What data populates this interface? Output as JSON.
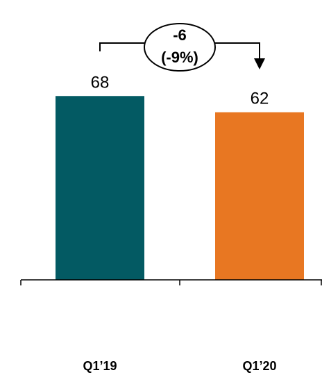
{
  "chart_data": {
    "type": "bar",
    "categories": [
      "Q1’19",
      "Q1’20"
    ],
    "values": [
      68,
      62
    ],
    "value_labels": [
      "68",
      "62"
    ],
    "colors": [
      "#035a63",
      "#e87722"
    ],
    "ylim": [
      0,
      75
    ],
    "grid": false,
    "title": "",
    "xlabel": "",
    "ylabel": "",
    "annotation": {
      "type": "delta-arrow",
      "from": "Q1’19",
      "to": "Q1’20",
      "line1": "-6",
      "line2": "(-9%)"
    }
  }
}
